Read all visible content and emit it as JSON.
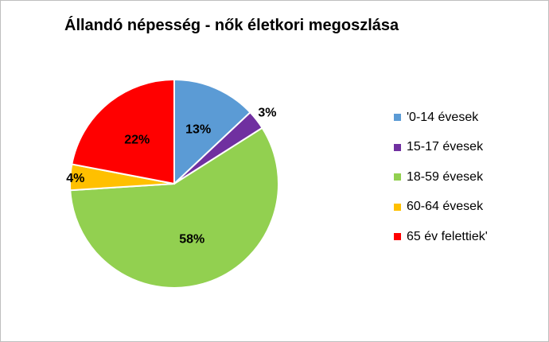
{
  "chart_data": {
    "type": "pie",
    "title": "Állandó népesség - nők életkori megoszlása",
    "categories": [
      "'0-14 évesek",
      "15-17 évesek",
      "18-59 évesek",
      "60-64 évesek",
      "65 év felettiek'"
    ],
    "values": [
      13,
      3,
      58,
      4,
      22
    ],
    "data_labels": [
      "13%",
      "3%",
      "58%",
      "4%",
      "22%"
    ],
    "colors": [
      "#5b9bd5",
      "#7030a0",
      "#92d050",
      "#ffc000",
      "#ff0000"
    ],
    "legend_position": "right"
  }
}
